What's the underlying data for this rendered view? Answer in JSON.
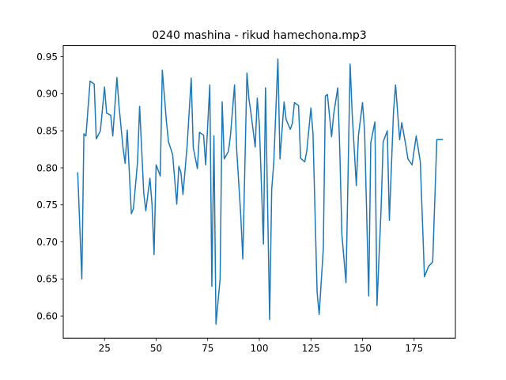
{
  "chart_data": {
    "type": "line",
    "title": "0240 mashina - rikud hamechona.mp3",
    "xlabel": "",
    "ylabel": "",
    "xlim": [
      5,
      195
    ],
    "ylim": [
      0.57,
      0.965
    ],
    "x_ticks": [
      25,
      50,
      75,
      100,
      125,
      150,
      175
    ],
    "y_ticks": [
      0.6,
      0.65,
      0.7,
      0.75,
      0.8,
      0.85,
      0.9,
      0.95
    ],
    "grid": false,
    "line_color": "#1f77b4",
    "series": [
      {
        "x": [
          12,
          14,
          15,
          16,
          18,
          20,
          21,
          23,
          25,
          26,
          28,
          29,
          31,
          32,
          34,
          35,
          36,
          38,
          39,
          41,
          42,
          44,
          45,
          47,
          48,
          49,
          50,
          52,
          53,
          55,
          56,
          58,
          60,
          61,
          62,
          63,
          65,
          67,
          68,
          70,
          71,
          73,
          74,
          76,
          77,
          78,
          79,
          81,
          82,
          83,
          85,
          86,
          88,
          89,
          91,
          92,
          94,
          95,
          96,
          98,
          99,
          100,
          102,
          103,
          105,
          106,
          107,
          109,
          110,
          112,
          113,
          115,
          116,
          117,
          119,
          120,
          122,
          123,
          125,
          126,
          128,
          129,
          131,
          132,
          133,
          135,
          136,
          138,
          139,
          140,
          142,
          144,
          145,
          147,
          148,
          150,
          151,
          153,
          154,
          156,
          157,
          159,
          160,
          162,
          163,
          165,
          166,
          168,
          169,
          171,
          172,
          174,
          176,
          178,
          180,
          182,
          184,
          186,
          187,
          189
        ],
        "y": [
          0.794,
          0.65,
          0.846,
          0.843,
          0.917,
          0.913,
          0.839,
          0.85,
          0.909,
          0.874,
          0.871,
          0.843,
          0.922,
          0.884,
          0.826,
          0.806,
          0.851,
          0.738,
          0.745,
          0.808,
          0.883,
          0.766,
          0.742,
          0.786,
          0.751,
          0.683,
          0.804,
          0.789,
          0.932,
          0.862,
          0.835,
          0.818,
          0.751,
          0.802,
          0.794,
          0.764,
          0.829,
          0.921,
          0.827,
          0.799,
          0.848,
          0.844,
          0.804,
          0.912,
          0.64,
          0.843,
          0.589,
          0.65,
          0.889,
          0.812,
          0.822,
          0.843,
          0.912,
          0.826,
          0.736,
          0.677,
          0.928,
          0.892,
          0.873,
          0.828,
          0.894,
          0.859,
          0.697,
          0.908,
          0.595,
          0.771,
          0.807,
          0.947,
          0.812,
          0.889,
          0.865,
          0.852,
          0.86,
          0.888,
          0.884,
          0.813,
          0.808,
          0.823,
          0.881,
          0.846,
          0.632,
          0.602,
          0.691,
          0.897,
          0.899,
          0.842,
          0.872,
          0.908,
          0.822,
          0.71,
          0.645,
          0.94,
          0.873,
          0.776,
          0.843,
          0.888,
          0.85,
          0.627,
          0.834,
          0.862,
          0.614,
          0.745,
          0.835,
          0.85,
          0.729,
          0.875,
          0.912,
          0.838,
          0.861,
          0.83,
          0.812,
          0.804,
          0.843,
          0.808,
          0.653,
          0.667,
          0.673,
          0.838,
          0.838,
          0.838
        ]
      }
    ]
  }
}
